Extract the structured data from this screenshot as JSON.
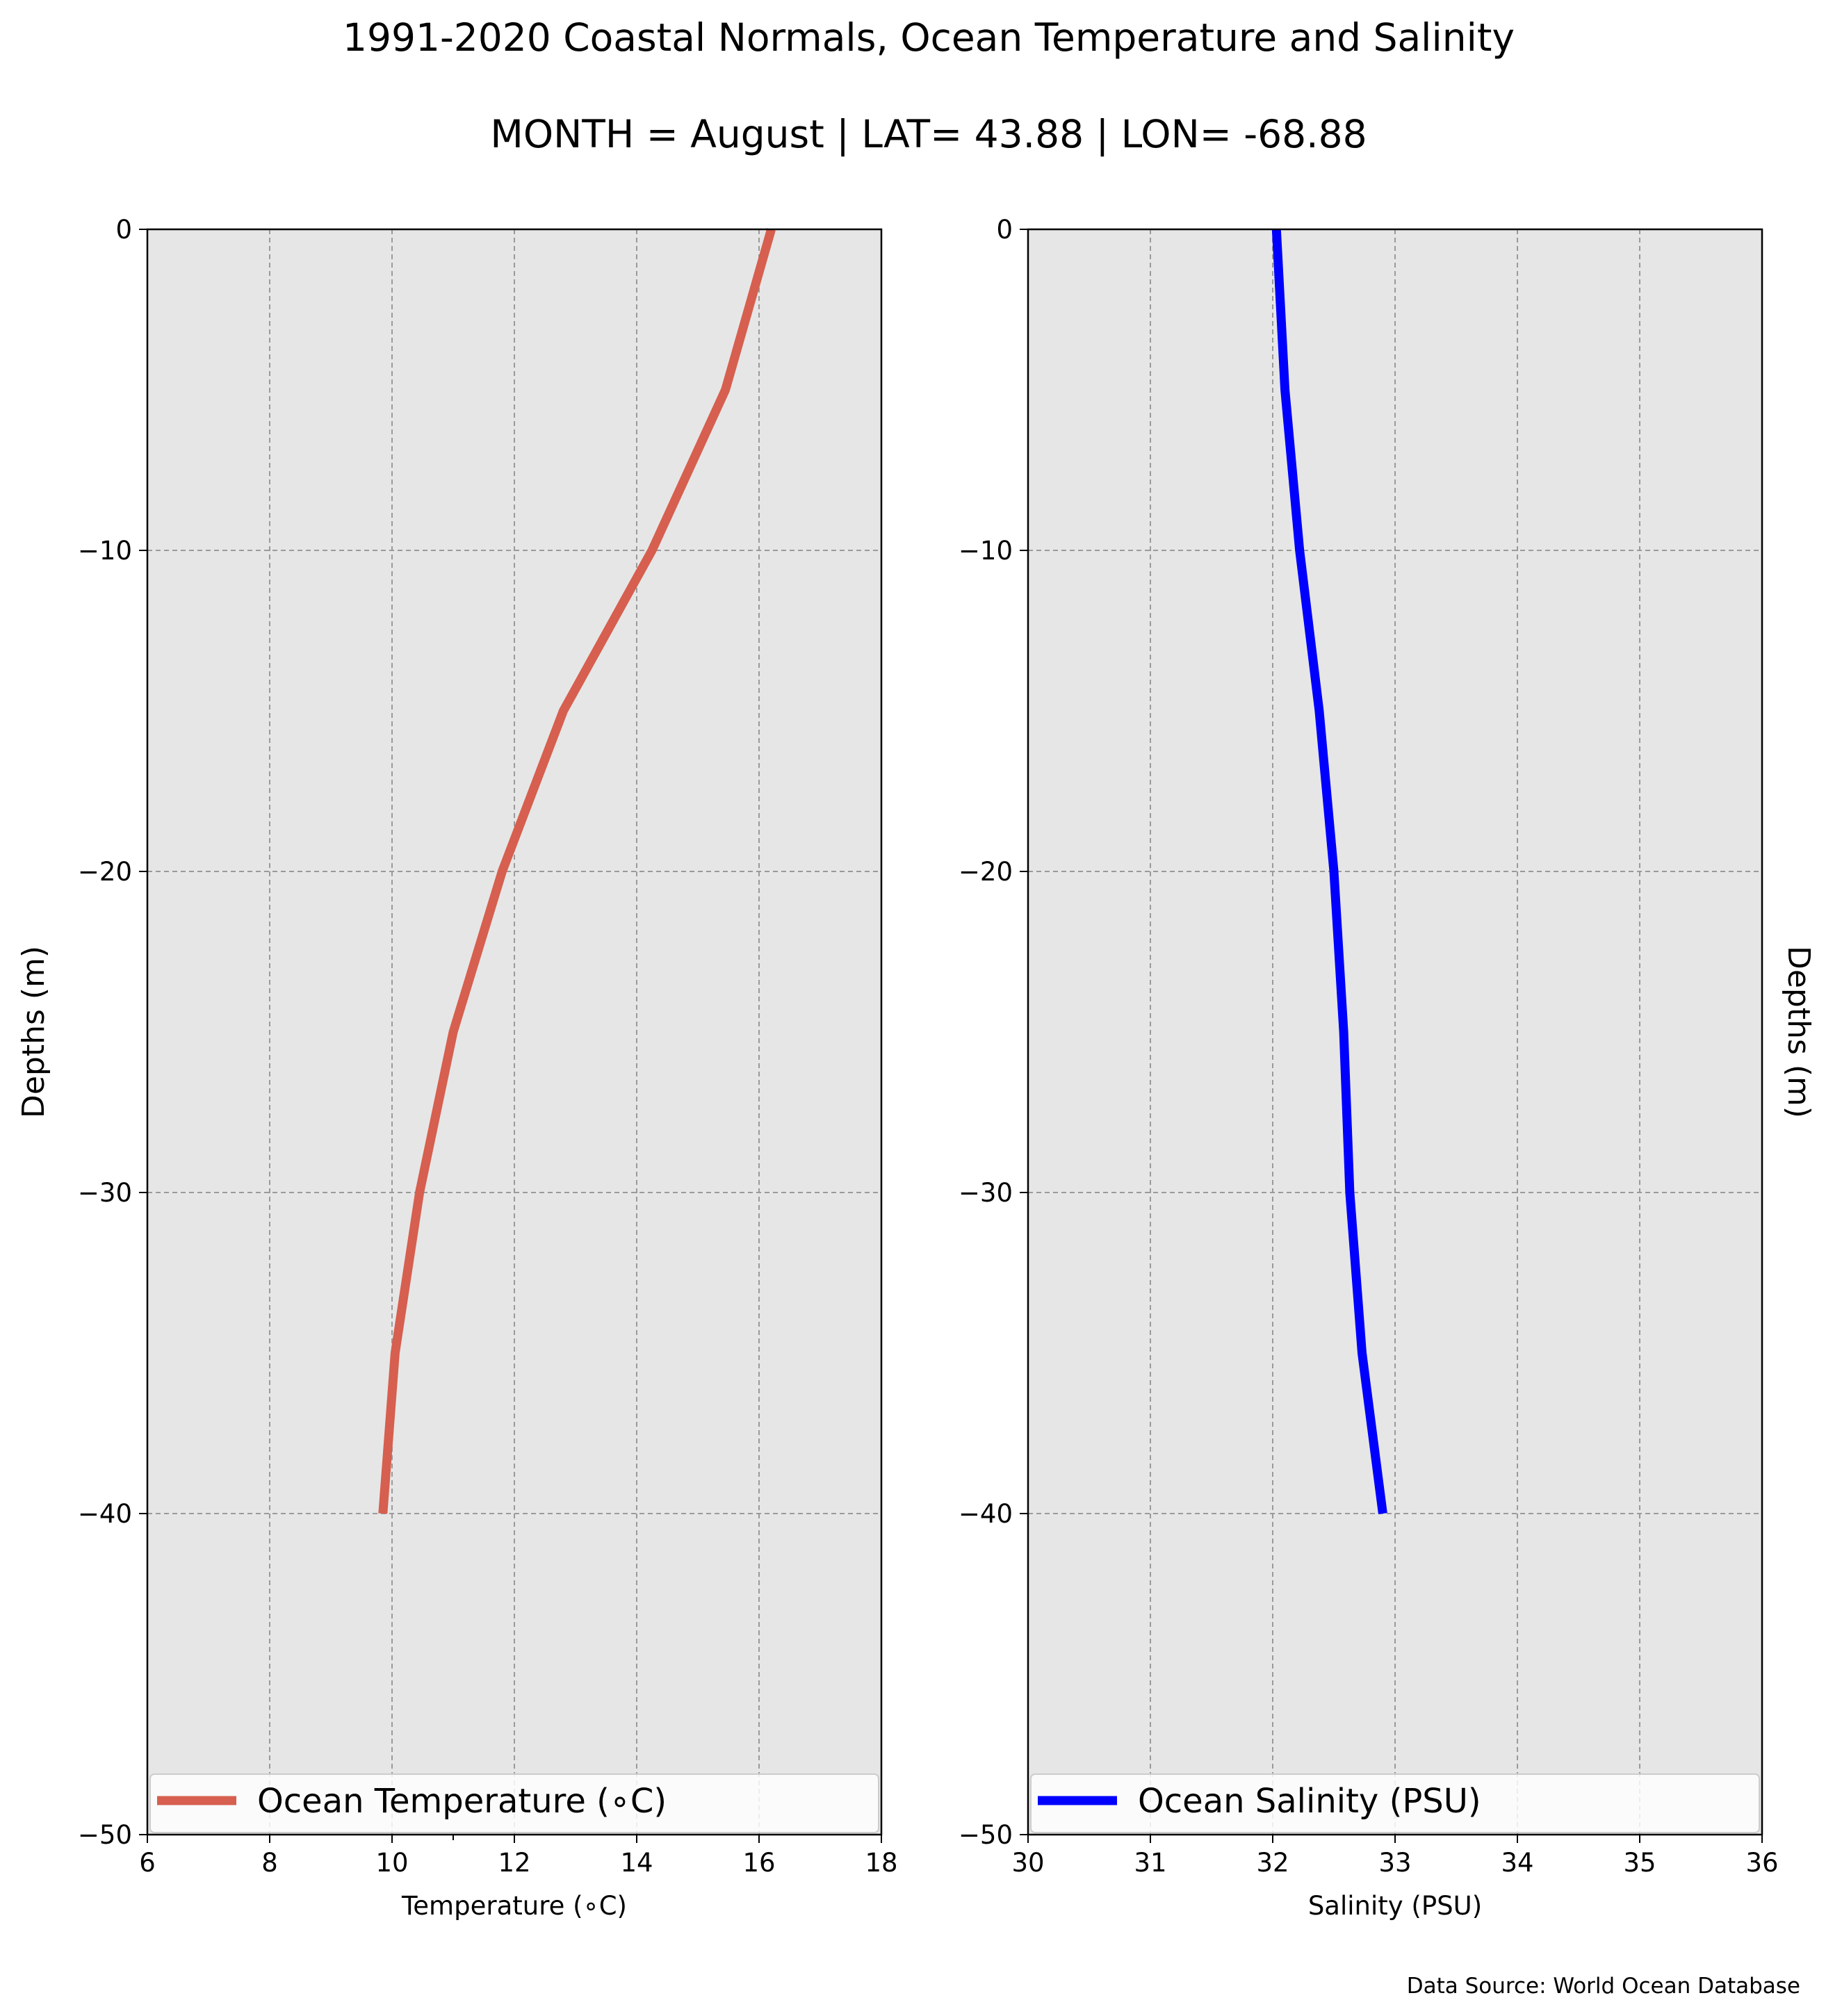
{
  "title": "1991-2020 Coastal Normals, Ocean Temperature and Salinity",
  "subtitle": "MONTH = August | LAT= 43.88 | LON= -68.88",
  "source_note": "Data Source: World Ocean Database",
  "colors": {
    "temperature": "#d65f4f",
    "salinity": "#0000ff",
    "plot_background": "#e6e6e6",
    "grid": "#9a9a9a"
  },
  "chart_data": [
    {
      "type": "line",
      "xlabel": "Temperature (∘C)",
      "ylabel": "Depths (m)",
      "xlim": [
        6,
        18
      ],
      "ylim": [
        -50,
        0
      ],
      "xticks": [
        "6",
        "8",
        "10",
        "12",
        "14",
        "16",
        "18"
      ],
      "yticks": [
        "−50",
        "−40",
        "−30",
        "−20",
        "−10",
        "0"
      ],
      "grid": true,
      "legend_position": "lower center",
      "series": [
        {
          "name": "Ocean Temperature (∘C)",
          "x": [
            16.2,
            15.45,
            14.25,
            12.8,
            11.8,
            11.0,
            10.45,
            10.05,
            9.85
          ],
          "y": [
            0,
            -5,
            -10,
            -15,
            -20,
            -25,
            -30,
            -35,
            -40
          ]
        }
      ]
    },
    {
      "type": "line",
      "xlabel": "Salinity (PSU)",
      "ylabel": "Depths (m)",
      "xlim": [
        30,
        36
      ],
      "ylim": [
        -50,
        0
      ],
      "xticks": [
        "30",
        "31",
        "32",
        "33",
        "34",
        "35",
        "36"
      ],
      "yticks": [
        "−50",
        "−40",
        "−30",
        "−20",
        "−10",
        "0"
      ],
      "grid": true,
      "legend_position": "lower center",
      "series": [
        {
          "name": "Ocean Salinity (PSU)",
          "x": [
            32.03,
            32.1,
            32.22,
            32.38,
            32.5,
            32.58,
            32.63,
            32.73,
            32.9
          ],
          "y": [
            0,
            -5,
            -10,
            -15,
            -20,
            -25,
            -30,
            -35,
            -40
          ]
        }
      ]
    }
  ]
}
